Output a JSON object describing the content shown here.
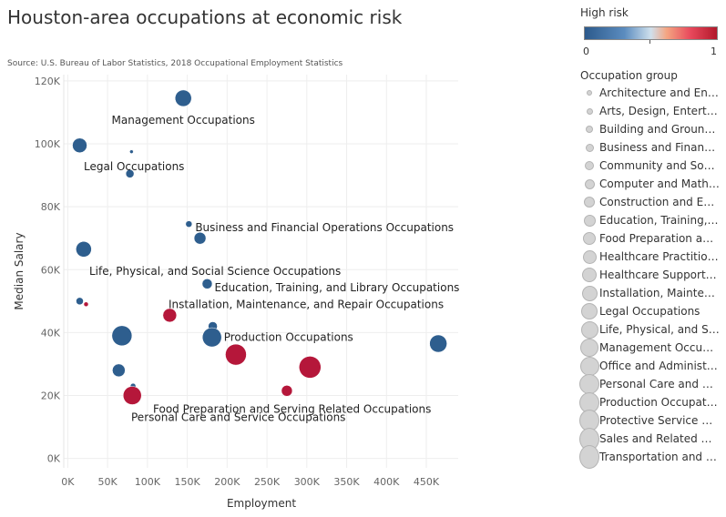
{
  "page": {
    "title": "Houston-area occupations at economic risk",
    "source": "Source: U.S. Bureau of Labor Statistics, 2018 Occupational Employment Statistics"
  },
  "legend": {
    "risk_title": "High risk",
    "risk_min": "0",
    "risk_max": "1",
    "group_title": "Occupation group",
    "groups": [
      "Architecture and Engineering Occupations",
      "Arts, Design, Entertainment, Sports, and Media Occupations",
      "Building and Grounds Cleaning and Maintenance Occupations",
      "Business and Financial Operations Occupations",
      "Community and Social Service Occupations",
      "Computer and Mathematical Occupations",
      "Construction and Extraction Occupations",
      "Education, Training, and Library Occupations",
      "Food Preparation and Serving Related Occupations",
      "Healthcare Practitioners and Technical Occupations",
      "Healthcare Support Occupations",
      "Installation, Maintenance, and Repair Occupations",
      "Legal Occupations",
      "Life, Physical, and Social Science Occupations",
      "Management Occupations",
      "Office and Administrative Support Occupations",
      "Personal Care and Service Occupations",
      "Production Occupations",
      "Protective Service Occupations",
      "Sales and Related Occupations",
      "Transportation and Material Moving Occupations"
    ]
  },
  "colors": {
    "low_risk": "#2e5e8e",
    "high_risk": "#b5173a",
    "gridline": "#eeeeee",
    "legend_symbol": "#d3d3d3"
  },
  "chart_data": {
    "type": "scatter",
    "xlabel": "Employment",
    "ylabel": "Median Salary",
    "xlim": [
      -5000,
      490000
    ],
    "ylim": [
      -3000,
      122000
    ],
    "x_ticks": [
      0,
      50000,
      100000,
      150000,
      200000,
      250000,
      300000,
      350000,
      400000,
      450000
    ],
    "x_tick_labels": [
      "0K",
      "50K",
      "100K",
      "150K",
      "200K",
      "250K",
      "300K",
      "350K",
      "400K",
      "450K"
    ],
    "y_ticks": [
      0,
      20000,
      40000,
      60000,
      80000,
      100000,
      120000
    ],
    "y_tick_labels": [
      "0K",
      "20K",
      "40K",
      "60K",
      "80K",
      "100K",
      "120K"
    ],
    "grid": true,
    "size_encoding": "Occupation group",
    "color_encoding": "High risk",
    "points": [
      {
        "group": "Architecture and Engineering Occupations",
        "x": 80000,
        "y": 97500,
        "risk": "low",
        "label": ""
      },
      {
        "group": "Arts, Design, Entertainment, Sports, and Media Occupations",
        "x": 23000,
        "y": 49000,
        "risk": "high",
        "label": ""
      },
      {
        "group": "Building and Grounds Cleaning and Maintenance Occupations",
        "x": 82000,
        "y": 23000,
        "risk": "low",
        "label": ""
      },
      {
        "group": "Business and Financial Operations Occupations",
        "x": 152000,
        "y": 74500,
        "risk": "low",
        "label": "Business and Financial Operations Occupations"
      },
      {
        "group": "Community and Social Service Occupations",
        "x": 15000,
        "y": 50000,
        "risk": "low",
        "label": ""
      },
      {
        "group": "Computer and Mathematical Occupations",
        "x": 78000,
        "y": 90500,
        "risk": "low",
        "label": ""
      },
      {
        "group": "Construction and Extraction Occupations",
        "x": 182000,
        "y": 42000,
        "risk": "low",
        "label": ""
      },
      {
        "group": "Education, Training, and Library Occupations",
        "x": 175000,
        "y": 55500,
        "risk": "low",
        "label": "Education, Training, and Library Occupations"
      },
      {
        "group": "Food Preparation and Serving Related Occupations",
        "x": 275000,
        "y": 21500,
        "risk": "high",
        "label": "Food Preparation and Serving Related Occupations"
      },
      {
        "group": "Healthcare Practitioners and Technical Occupations",
        "x": 166000,
        "y": 70000,
        "risk": "low",
        "label": ""
      },
      {
        "group": "Healthcare Support Occupations",
        "x": 64000,
        "y": 28000,
        "risk": "low",
        "label": ""
      },
      {
        "group": "Installation, Maintenance, and Repair Occupations",
        "x": 128000,
        "y": 45500,
        "risk": "high",
        "label": "Installation, Maintenance, and Repair Occupations"
      },
      {
        "group": "Legal Occupations",
        "x": 15000,
        "y": 99500,
        "risk": "low",
        "label": "Legal Occupations"
      },
      {
        "group": "Life, Physical, and Social Science Occupations",
        "x": 20000,
        "y": 66500,
        "risk": "low",
        "label": "Life, Physical, and Social Science Occupations"
      },
      {
        "group": "Management Occupations",
        "x": 145000,
        "y": 114500,
        "risk": "low",
        "label": "Management Occupations"
      },
      {
        "group": "Office and Administrative Support Occupations",
        "x": 465000,
        "y": 36500,
        "risk": "low",
        "label": ""
      },
      {
        "group": "Personal Care and Service Occupations",
        "x": 81000,
        "y": 20000,
        "risk": "high",
        "label": "Personal Care and Service Occupations"
      },
      {
        "group": "Production Occupations",
        "x": 181000,
        "y": 38500,
        "risk": "low",
        "label": "Production Occupations"
      },
      {
        "group": "Protective Service Occupations",
        "x": 68000,
        "y": 39000,
        "risk": "low",
        "label": ""
      },
      {
        "group": "Sales and Related Occupations",
        "x": 211000,
        "y": 33000,
        "risk": "high",
        "label": ""
      },
      {
        "group": "Transportation and Material Moving Occupations",
        "x": 304000,
        "y": 29000,
        "risk": "high",
        "label": ""
      }
    ]
  }
}
